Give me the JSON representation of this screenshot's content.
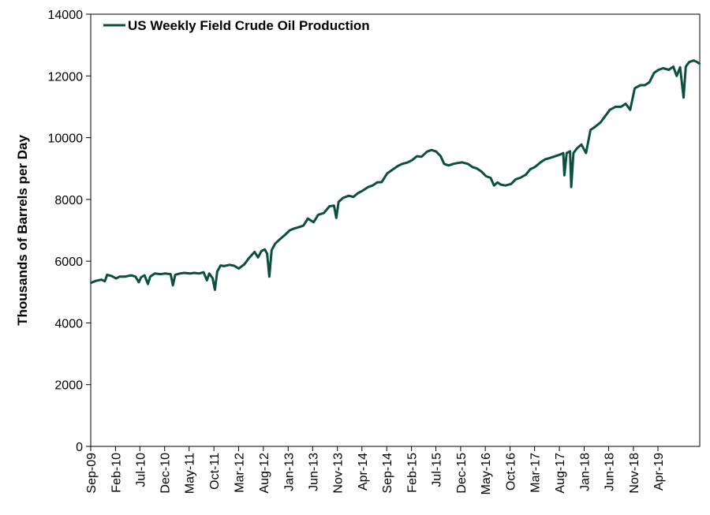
{
  "chart_data": {
    "type": "line",
    "title": "",
    "xlabel": "",
    "ylabel": "Thousands of Barrels per Day",
    "ylim": [
      0,
      14000
    ],
    "yticks": [
      0,
      2000,
      4000,
      6000,
      8000,
      10000,
      12000,
      14000
    ],
    "xlim": [
      "2009-09-01",
      "2019-12-15"
    ],
    "xtick_labels": [
      "Sep-09",
      "Feb-10",
      "Jul-10",
      "Dec-10",
      "May-11",
      "Oct-11",
      "Mar-12",
      "Aug-12",
      "Jan-13",
      "Jun-13",
      "Nov-13",
      "Apr-14",
      "Sep-14",
      "Feb-15",
      "Jul-15",
      "Dec-15",
      "May-16",
      "Oct-16",
      "Mar-17",
      "Aug-17",
      "Jan-18",
      "Jun-18",
      "Nov-18",
      "Apr-19"
    ],
    "xtick_dates": [
      "2009-09-01",
      "2010-02-01",
      "2010-07-01",
      "2010-12-01",
      "2011-05-01",
      "2011-10-01",
      "2012-03-01",
      "2012-08-01",
      "2013-01-01",
      "2013-06-01",
      "2013-11-01",
      "2014-04-01",
      "2014-09-01",
      "2015-02-01",
      "2015-07-01",
      "2015-12-01",
      "2016-05-01",
      "2016-10-01",
      "2017-03-01",
      "2017-08-01",
      "2018-01-01",
      "2018-06-01",
      "2018-11-01",
      "2019-04-01"
    ],
    "grid": false,
    "legend_position": "top-left",
    "series": [
      {
        "name": "US Weekly Field Crude Oil Production",
        "color": "#0b4f3f",
        "points": [
          [
            "2009-09-04",
            5300
          ],
          [
            "2009-10-02",
            5360
          ],
          [
            "2009-11-06",
            5400
          ],
          [
            "2009-11-27",
            5350
          ],
          [
            "2009-12-11",
            5560
          ],
          [
            "2010-01-08",
            5520
          ],
          [
            "2010-02-05",
            5440
          ],
          [
            "2010-02-26",
            5500
          ],
          [
            "2010-04-02",
            5500
          ],
          [
            "2010-05-07",
            5540
          ],
          [
            "2010-06-04",
            5500
          ],
          [
            "2010-06-25",
            5320
          ],
          [
            "2010-07-09",
            5480
          ],
          [
            "2010-07-30",
            5540
          ],
          [
            "2010-08-20",
            5260
          ],
          [
            "2010-09-03",
            5500
          ],
          [
            "2010-10-01",
            5600
          ],
          [
            "2010-11-05",
            5580
          ],
          [
            "2010-12-03",
            5600
          ],
          [
            "2011-01-07",
            5580
          ],
          [
            "2011-01-21",
            5220
          ],
          [
            "2011-02-04",
            5560
          ],
          [
            "2011-03-04",
            5600
          ],
          [
            "2011-04-01",
            5620
          ],
          [
            "2011-05-06",
            5600
          ],
          [
            "2011-06-03",
            5620
          ],
          [
            "2011-07-01",
            5600
          ],
          [
            "2011-07-29",
            5640
          ],
          [
            "2011-08-19",
            5380
          ],
          [
            "2011-09-02",
            5600
          ],
          [
            "2011-09-23",
            5450
          ],
          [
            "2011-10-07",
            5070
          ],
          [
            "2011-10-21",
            5660
          ],
          [
            "2011-11-11",
            5860
          ],
          [
            "2011-12-02",
            5840
          ],
          [
            "2012-01-06",
            5880
          ],
          [
            "2012-02-03",
            5850
          ],
          [
            "2012-03-02",
            5760
          ],
          [
            "2012-04-06",
            5900
          ],
          [
            "2012-05-04",
            6100
          ],
          [
            "2012-06-08",
            6300
          ],
          [
            "2012-06-29",
            6120
          ],
          [
            "2012-07-20",
            6330
          ],
          [
            "2012-08-10",
            6380
          ],
          [
            "2012-08-24",
            6240
          ],
          [
            "2012-09-07",
            5500
          ],
          [
            "2012-09-21",
            6350
          ],
          [
            "2012-10-12",
            6560
          ],
          [
            "2012-11-09",
            6700
          ],
          [
            "2012-12-14",
            6860
          ],
          [
            "2013-01-11",
            7000
          ],
          [
            "2013-02-08",
            7060
          ],
          [
            "2013-03-08",
            7100
          ],
          [
            "2013-04-05",
            7150
          ],
          [
            "2013-05-03",
            7380
          ],
          [
            "2013-06-07",
            7260
          ],
          [
            "2013-07-05",
            7500
          ],
          [
            "2013-08-09",
            7560
          ],
          [
            "2013-09-13",
            7780
          ],
          [
            "2013-10-11",
            7800
          ],
          [
            "2013-10-25",
            7400
          ],
          [
            "2013-11-08",
            7920
          ],
          [
            "2013-12-06",
            8050
          ],
          [
            "2014-01-10",
            8120
          ],
          [
            "2014-02-07",
            8080
          ],
          [
            "2014-03-07",
            8200
          ],
          [
            "2014-04-04",
            8280
          ],
          [
            "2014-05-09",
            8400
          ],
          [
            "2014-06-06",
            8450
          ],
          [
            "2014-07-04",
            8550
          ],
          [
            "2014-08-01",
            8560
          ],
          [
            "2014-09-05",
            8850
          ],
          [
            "2014-10-03",
            8950
          ],
          [
            "2014-11-07",
            9080
          ],
          [
            "2014-12-05",
            9150
          ],
          [
            "2015-01-09",
            9200
          ],
          [
            "2015-02-06",
            9280
          ],
          [
            "2015-03-06",
            9400
          ],
          [
            "2015-04-03",
            9380
          ],
          [
            "2015-05-08",
            9550
          ],
          [
            "2015-06-05",
            9600
          ],
          [
            "2015-07-03",
            9550
          ],
          [
            "2015-07-31",
            9400
          ],
          [
            "2015-08-21",
            9150
          ],
          [
            "2015-09-18",
            9100
          ],
          [
            "2015-10-16",
            9150
          ],
          [
            "2015-11-13",
            9180
          ],
          [
            "2015-12-11",
            9200
          ],
          [
            "2016-01-15",
            9150
          ],
          [
            "2016-02-12",
            9050
          ],
          [
            "2016-03-11",
            9000
          ],
          [
            "2016-04-08",
            8900
          ],
          [
            "2016-05-06",
            8750
          ],
          [
            "2016-06-03",
            8700
          ],
          [
            "2016-06-24",
            8450
          ],
          [
            "2016-07-15",
            8550
          ],
          [
            "2016-08-05",
            8480
          ],
          [
            "2016-09-02",
            8450
          ],
          [
            "2016-10-07",
            8500
          ],
          [
            "2016-11-04",
            8650
          ],
          [
            "2016-12-02",
            8700
          ],
          [
            "2017-01-06",
            8800
          ],
          [
            "2017-02-03",
            8980
          ],
          [
            "2017-03-03",
            9050
          ],
          [
            "2017-04-07",
            9200
          ],
          [
            "2017-05-05",
            9300
          ],
          [
            "2017-06-02",
            9340
          ],
          [
            "2017-07-07",
            9400
          ],
          [
            "2017-08-04",
            9450
          ],
          [
            "2017-08-25",
            9500
          ],
          [
            "2017-09-01",
            8780
          ],
          [
            "2017-09-15",
            9500
          ],
          [
            "2017-10-06",
            9560
          ],
          [
            "2017-10-13",
            8400
          ],
          [
            "2017-10-27",
            9500
          ],
          [
            "2017-11-17",
            9650
          ],
          [
            "2017-12-15",
            9780
          ],
          [
            "2018-01-12",
            9500
          ],
          [
            "2018-02-09",
            10250
          ],
          [
            "2018-03-09",
            10350
          ],
          [
            "2018-04-13",
            10500
          ],
          [
            "2018-05-11",
            10700
          ],
          [
            "2018-06-08",
            10900
          ],
          [
            "2018-07-13",
            11000
          ],
          [
            "2018-08-17",
            11000
          ],
          [
            "2018-09-14",
            11100
          ],
          [
            "2018-10-12",
            10900
          ],
          [
            "2018-11-09",
            11600
          ],
          [
            "2018-12-14",
            11700
          ],
          [
            "2019-01-11",
            11700
          ],
          [
            "2019-02-08",
            11800
          ],
          [
            "2019-03-08",
            12100
          ],
          [
            "2019-04-05",
            12200
          ],
          [
            "2019-05-03",
            12250
          ],
          [
            "2019-06-07",
            12200
          ],
          [
            "2019-07-05",
            12300
          ],
          [
            "2019-07-26",
            12000
          ],
          [
            "2019-08-16",
            12280
          ],
          [
            "2019-09-06",
            11300
          ],
          [
            "2019-09-20",
            12300
          ],
          [
            "2019-10-11",
            12450
          ],
          [
            "2019-11-08",
            12500
          ],
          [
            "2019-11-29",
            12450
          ],
          [
            "2019-12-13",
            12400
          ]
        ]
      }
    ]
  }
}
